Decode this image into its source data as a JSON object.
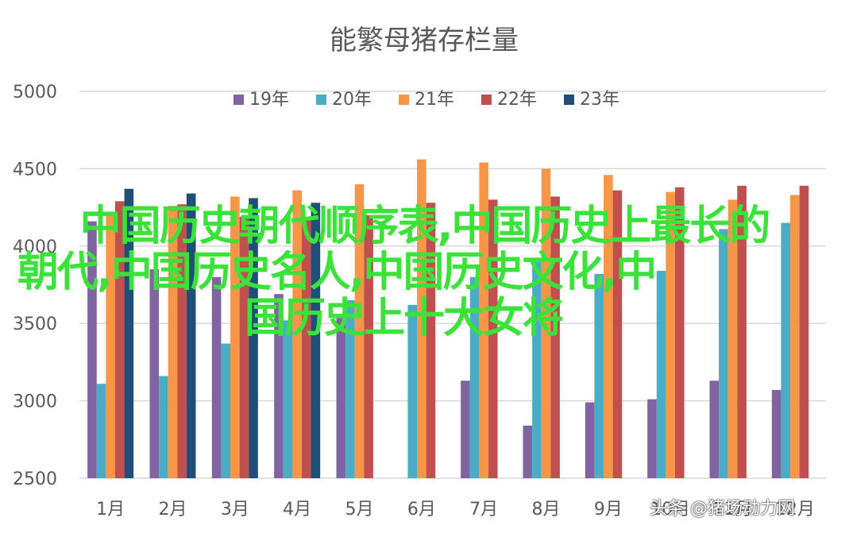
{
  "chart_data": {
    "type": "bar",
    "title": "能繁母猪存栏量",
    "categories": [
      "1月",
      "2月",
      "3月",
      "4月",
      "5月",
      "6月",
      "7月",
      "8月",
      "9月",
      "10月",
      "11月",
      "12月"
    ],
    "ylim": [
      2500,
      5000
    ],
    "yticks": [
      "2500",
      "3000",
      "3500",
      "4000",
      "4500",
      "5000"
    ],
    "grid": true,
    "legend_position": "top",
    "series": [
      {
        "name": "19年",
        "color": "#8064a2",
        "values": [
          4160,
          3850,
          3800,
          3690,
          3550,
          null,
          3130,
          2840,
          2990,
          3010,
          3130,
          3070
        ]
      },
      {
        "name": "20年",
        "color": "#4bacc6",
        "values": [
          3110,
          3160,
          3370,
          3520,
          3650,
          3620,
          3800,
          3910,
          3820,
          3840,
          4110,
          4150
        ]
      },
      {
        "name": "21年",
        "color": "#f79646",
        "values": [
          4210,
          4260,
          4320,
          4360,
          4400,
          4560,
          4540,
          4500,
          4460,
          4350,
          4300,
          4330
        ]
      },
      {
        "name": "22年",
        "color": "#c0504d",
        "values": [
          4290,
          4270,
          4190,
          4180,
          4200,
          4280,
          4300,
          4320,
          4360,
          4380,
          4390,
          4390
        ]
      },
      {
        "name": "23年",
        "color": "#1f4e79",
        "values": [
          4370,
          4340,
          4310,
          4280,
          null,
          null,
          null,
          null,
          null,
          null,
          null,
          null
        ]
      }
    ]
  },
  "overlay": {
    "line1": "中国历史朝代顺序表,中国历史上最长的",
    "line2": "朝代,中国历史名人,中国历史文化,中",
    "line3": "国历史上十大女将"
  },
  "watermark": "头条 @猪场动力网"
}
